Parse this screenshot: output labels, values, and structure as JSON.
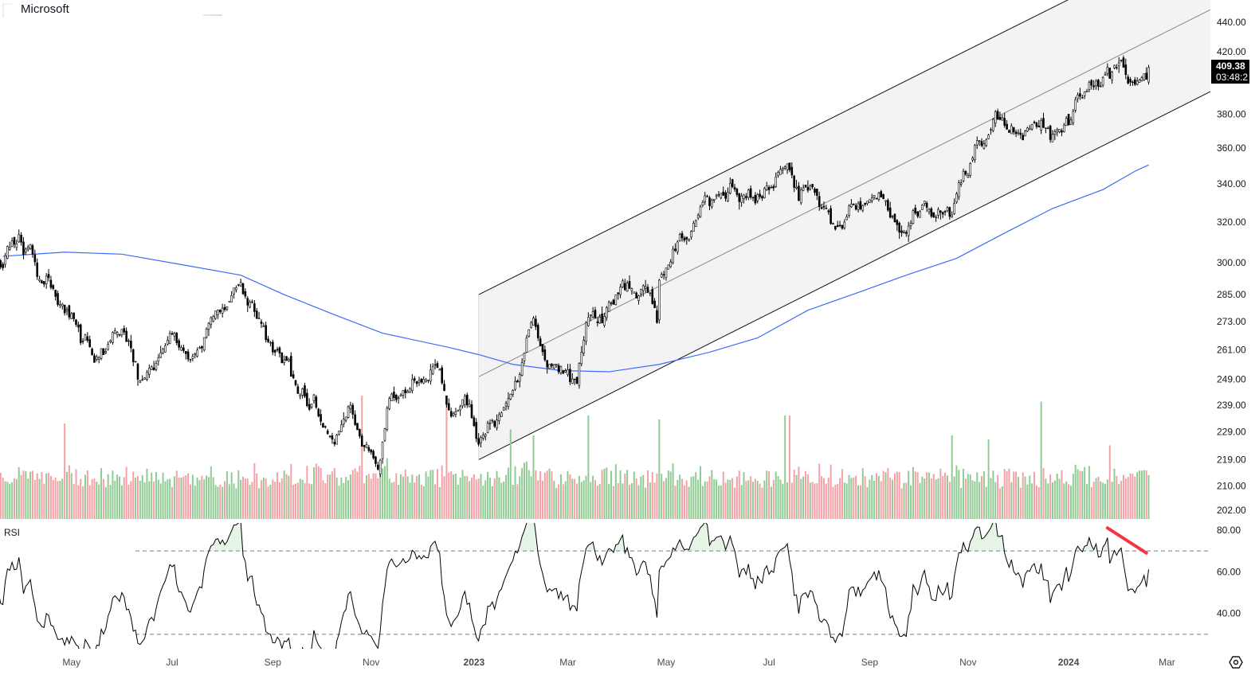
{
  "header": {
    "symbol_name": "Microsoft"
  },
  "price_axis": {
    "ticks": [
      {
        "value": 440,
        "label": "440.00"
      },
      {
        "value": 420,
        "label": "420.00"
      },
      {
        "value": 380,
        "label": "380.00"
      },
      {
        "value": 360,
        "label": "360.00"
      },
      {
        "value": 340,
        "label": "340.00"
      },
      {
        "value": 320,
        "label": "320.00"
      },
      {
        "value": 300,
        "label": "300.00"
      },
      {
        "value": 285,
        "label": "285.00"
      },
      {
        "value": 273,
        "label": "273.00"
      },
      {
        "value": 261,
        "label": "261.00"
      },
      {
        "value": 249,
        "label": "249.00"
      },
      {
        "value": 239,
        "label": "239.00"
      },
      {
        "value": 229,
        "label": "229.00"
      },
      {
        "value": 219,
        "label": "219.00"
      },
      {
        "value": 210,
        "label": "210.00"
      },
      {
        "value": 202,
        "label": "202.00"
      }
    ],
    "current_price": "409.38",
    "countdown": "03:48:2"
  },
  "rsi_pane": {
    "title": "RSI",
    "ticks": [
      {
        "value": 80,
        "label": "80.00"
      },
      {
        "value": 60,
        "label": "60.00"
      },
      {
        "value": 40,
        "label": "40.00"
      }
    ]
  },
  "time_axis": {
    "labels": [
      {
        "text": "May",
        "date": "2022-05-02"
      },
      {
        "text": "Jul",
        "date": "2022-07-01"
      },
      {
        "text": "Sep",
        "date": "2022-09-01"
      },
      {
        "text": "Nov",
        "date": "2022-11-01"
      },
      {
        "text": "2023",
        "date": "2023-01-03",
        "bold": true
      },
      {
        "text": "Mar",
        "date": "2023-03-01"
      },
      {
        "text": "May",
        "date": "2023-05-01"
      },
      {
        "text": "Jul",
        "date": "2023-07-03"
      },
      {
        "text": "Sep",
        "date": "2023-09-01"
      },
      {
        "text": "Nov",
        "date": "2023-11-01"
      },
      {
        "text": "2024",
        "date": "2024-01-02",
        "bold": true
      },
      {
        "text": "Mar",
        "date": "2024-03-01"
      }
    ]
  },
  "colors": {
    "candle": "#000000",
    "ma": "#3d6cf5",
    "volume_up": "#8fcb93",
    "volume_down": "#f5a0a6",
    "channel_fill": "#f3f3f5",
    "rsi_line": "#000000",
    "rsi_trendline": "#f23645"
  },
  "chart_data": {
    "type": "candlestick",
    "title": "Microsoft",
    "scale": "log",
    "ylim": [
      198.5,
      456
    ],
    "price_path": [
      [
        "2022-02-07",
        300
      ],
      [
        "2022-03-21",
        302
      ],
      [
        "2022-03-29",
        313
      ],
      [
        "2022-04-08",
        300
      ],
      [
        "2022-04-13",
        287
      ],
      [
        "2022-04-27",
        285
      ],
      [
        "2022-05-06",
        267
      ],
      [
        "2022-05-16",
        256
      ],
      [
        "2022-06-01",
        271
      ],
      [
        "2022-06-13",
        244
      ],
      [
        "2022-06-24",
        260
      ],
      [
        "2022-07-05",
        266
      ],
      [
        "2022-07-13",
        256
      ],
      [
        "2022-07-22",
        267
      ],
      [
        "2022-08-01",
        281
      ],
      [
        "2022-08-12",
        290
      ],
      [
        "2022-08-22",
        281
      ],
      [
        "2022-09-01",
        260
      ],
      [
        "2022-09-12",
        253
      ],
      [
        "2022-09-21",
        241
      ],
      [
        "2022-09-30",
        236
      ],
      [
        "2022-10-10",
        227
      ],
      [
        "2022-10-19",
        238
      ],
      [
        "2022-10-28",
        228
      ],
      [
        "2022-11-04",
        218
      ],
      [
        "2022-11-11",
        243
      ],
      [
        "2022-11-21",
        243
      ],
      [
        "2022-12-01",
        250
      ],
      [
        "2022-12-13",
        256
      ],
      [
        "2022-12-20",
        240
      ],
      [
        "2022-12-30",
        236
      ],
      [
        "2023-01-05",
        224
      ],
      [
        "2023-01-13",
        233
      ],
      [
        "2023-01-24",
        243
      ],
      [
        "2023-02-01",
        256
      ],
      [
        "2023-02-08",
        272
      ],
      [
        "2023-02-17",
        253
      ],
      [
        "2023-02-27",
        250
      ],
      [
        "2023-03-07",
        250
      ],
      [
        "2023-03-14",
        278
      ],
      [
        "2023-03-27",
        282
      ],
      [
        "2023-04-05",
        288
      ],
      [
        "2023-04-19",
        286
      ],
      [
        "2023-04-25",
        276
      ],
      [
        "2023-04-26",
        296
      ],
      [
        "2023-05-03",
        305
      ],
      [
        "2023-05-12",
        310
      ],
      [
        "2023-05-22",
        322
      ],
      [
        "2023-06-01",
        331
      ],
      [
        "2023-06-12",
        340
      ],
      [
        "2023-06-21",
        333
      ],
      [
        "2023-07-03",
        337
      ],
      [
        "2023-07-12",
        355
      ],
      [
        "2023-07-20",
        340
      ],
      [
        "2023-08-03",
        327
      ],
      [
        "2023-08-14",
        318
      ],
      [
        "2023-08-23",
        325
      ],
      [
        "2023-09-07",
        333
      ],
      [
        "2023-09-18",
        322
      ],
      [
        "2023-09-25",
        313
      ],
      [
        "2023-10-06",
        328
      ],
      [
        "2023-10-20",
        328
      ],
      [
        "2023-10-27",
        340
      ],
      [
        "2023-11-09",
        362
      ],
      [
        "2023-11-23",
        378
      ],
      [
        "2023-12-04",
        370
      ],
      [
        "2023-12-18",
        373
      ],
      [
        "2023-12-29",
        372
      ],
      [
        "2024-01-08",
        388
      ],
      [
        "2024-01-17",
        396
      ],
      [
        "2024-01-26",
        404
      ],
      [
        "2024-02-05",
        408
      ],
      [
        "2024-02-12",
        405
      ],
      [
        "2024-02-20",
        409.38
      ]
    ],
    "ma200": [
      [
        "2022-03-21",
        303
      ],
      [
        "2022-04-27",
        305
      ],
      [
        "2022-06-01",
        304
      ],
      [
        "2022-07-07",
        299
      ],
      [
        "2022-08-12",
        294
      ],
      [
        "2022-09-08",
        285
      ],
      [
        "2022-10-10",
        276
      ],
      [
        "2022-11-08",
        268
      ],
      [
        "2022-12-19",
        262
      ],
      [
        "2023-01-05",
        259
      ],
      [
        "2023-01-26",
        255
      ],
      [
        "2023-02-24",
        252.5
      ],
      [
        "2023-03-27",
        252
      ],
      [
        "2023-04-26",
        255
      ],
      [
        "2023-05-26",
        260
      ],
      [
        "2023-06-26",
        266
      ],
      [
        "2023-07-26",
        278
      ],
      [
        "2023-08-25",
        286
      ],
      [
        "2023-09-25",
        294
      ],
      [
        "2023-10-25",
        302
      ],
      [
        "2023-11-24",
        315
      ],
      [
        "2023-12-22",
        327
      ],
      [
        "2024-01-23",
        337
      ],
      [
        "2024-02-12",
        347
      ],
      [
        "2024-02-20",
        350.5
      ]
    ],
    "channel": {
      "start_date": "2023-01-05",
      "end_date": "2024-03-28",
      "upper": [
        285,
        511
      ],
      "middle": [
        250,
        449
      ],
      "lower": [
        219,
        394
      ]
    },
    "volume": {
      "unit": "relative",
      "spikes": [
        [
          "2022-04-27",
          2.4
        ],
        [
          "2022-10-26",
          3.1
        ],
        [
          "2022-12-16",
          3.1
        ],
        [
          "2023-01-25",
          2.25
        ],
        [
          "2023-02-08",
          2.1
        ],
        [
          "2023-03-14",
          2.6
        ],
        [
          "2023-04-26",
          2.5
        ],
        [
          "2023-07-12",
          2.6
        ],
        [
          "2023-07-14",
          2.6
        ],
        [
          "2023-10-23",
          2.1
        ],
        [
          "2023-11-14",
          2.0
        ],
        [
          "2023-12-15",
          2.95
        ],
        [
          "2024-01-26",
          1.85
        ]
      ]
    },
    "rsi": {
      "period": 14,
      "ylim": [
        23.1,
        83.4
      ],
      "levels": [
        70,
        30
      ],
      "trendline": [
        [
          "2024-01-25",
          81
        ],
        [
          "2024-02-19",
          69
        ]
      ]
    }
  }
}
